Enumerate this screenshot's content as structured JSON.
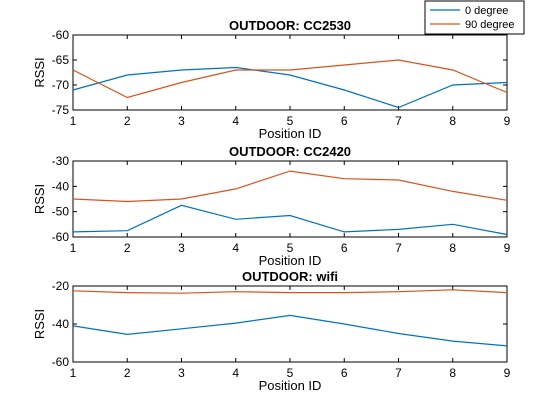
{
  "legend": {
    "placement": "top-right",
    "entries": [
      {
        "label": "0 degree",
        "color": "#0072BD"
      },
      {
        "label": "90 degree",
        "color": "#D95319"
      }
    ]
  },
  "chart_data": [
    {
      "type": "line",
      "title": "OUTDOOR: CC2530",
      "xlabel": "Position ID",
      "ylabel": "RSSI",
      "x": [
        1,
        2,
        3,
        4,
        5,
        6,
        7,
        8,
        9
      ],
      "xlim": [
        1,
        9
      ],
      "ylim": [
        -75,
        -60
      ],
      "yticks": [
        -75,
        -70,
        -65,
        -60
      ],
      "grid": false,
      "series": [
        {
          "name": "0 degree",
          "color": "#0072BD",
          "values": [
            -71,
            -68,
            -67,
            -66.5,
            -68,
            -71,
            -74.5,
            -70,
            -69.5
          ]
        },
        {
          "name": "90 degree",
          "color": "#D95319",
          "values": [
            -67,
            -72.5,
            -69.5,
            -67,
            -67,
            -66,
            -65,
            -67,
            -71.5
          ]
        }
      ]
    },
    {
      "type": "line",
      "title": "OUTDOOR: CC2420",
      "xlabel": "Position ID",
      "ylabel": "RSSI",
      "x": [
        1,
        2,
        3,
        4,
        5,
        6,
        7,
        8,
        9
      ],
      "xlim": [
        1,
        9
      ],
      "ylim": [
        -60,
        -30
      ],
      "yticks": [
        -60,
        -50,
        -40,
        -30
      ],
      "grid": false,
      "series": [
        {
          "name": "0 degree",
          "color": "#0072BD",
          "values": [
            -58,
            -57.5,
            -47.5,
            -53,
            -51.5,
            -58,
            -57,
            -55,
            -59
          ]
        },
        {
          "name": "90 degree",
          "color": "#D95319",
          "values": [
            -45,
            -46,
            -45,
            -41,
            -34,
            -37,
            -37.5,
            -42,
            -45.5
          ]
        }
      ]
    },
    {
      "type": "line",
      "title": "OUTDOOR: wifi",
      "xlabel": "Position ID",
      "ylabel": "RSSI",
      "x": [
        1,
        2,
        3,
        4,
        5,
        6,
        7,
        8,
        9
      ],
      "xlim": [
        1,
        9
      ],
      "ylim": [
        -60,
        -20
      ],
      "yticks": [
        -60,
        -40,
        -20
      ],
      "grid": false,
      "series": [
        {
          "name": "0 degree",
          "color": "#0072BD",
          "values": [
            -41,
            -45.5,
            -42.5,
            -39.5,
            -35.5,
            -40,
            -45,
            -49,
            -51.5
          ]
        },
        {
          "name": "90 degree",
          "color": "#D95319",
          "values": [
            -22.5,
            -23.5,
            -23.8,
            -23,
            -23.5,
            -23.5,
            -23,
            -22,
            -23.5
          ]
        }
      ]
    }
  ]
}
